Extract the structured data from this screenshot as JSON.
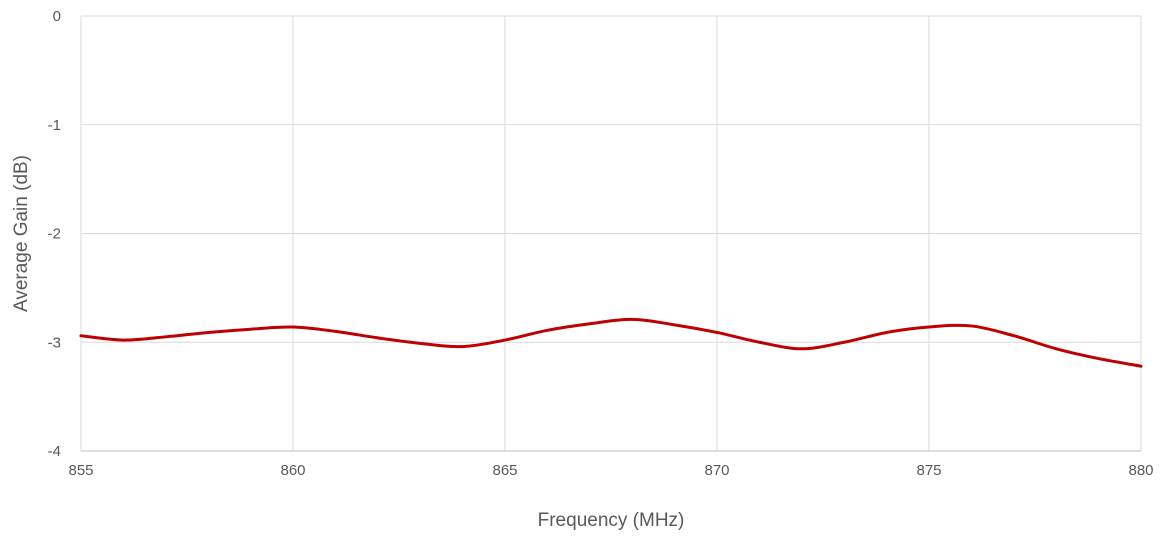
{
  "chart_data": {
    "type": "line",
    "title": "",
    "xlabel": "Frequency (MHz)",
    "ylabel": "Average Gain (dB)",
    "xlim": [
      855,
      880
    ],
    "ylim": [
      -4,
      0
    ],
    "x_ticks": [
      855,
      860,
      865,
      870,
      875,
      880
    ],
    "y_ticks": [
      0,
      -1,
      -2,
      -3,
      -4
    ],
    "grid": true,
    "legend": "none",
    "series": [
      {
        "color": "#c00000",
        "x": [
          855,
          856,
          857,
          858,
          859,
          860,
          861,
          862,
          863,
          864,
          865,
          866,
          867,
          868,
          869,
          870,
          871,
          872,
          873,
          874,
          875,
          876,
          877,
          878,
          879,
          880
        ],
        "y": [
          -2.94,
          -2.98,
          -2.95,
          -2.91,
          -2.88,
          -2.86,
          -2.9,
          -2.96,
          -3.01,
          -3.04,
          -2.98,
          -2.89,
          -2.83,
          -2.79,
          -2.84,
          -2.91,
          -3.0,
          -3.06,
          -3.0,
          -2.91,
          -2.86,
          -2.85,
          -2.94,
          -3.06,
          -3.15,
          -3.22
        ]
      }
    ]
  }
}
